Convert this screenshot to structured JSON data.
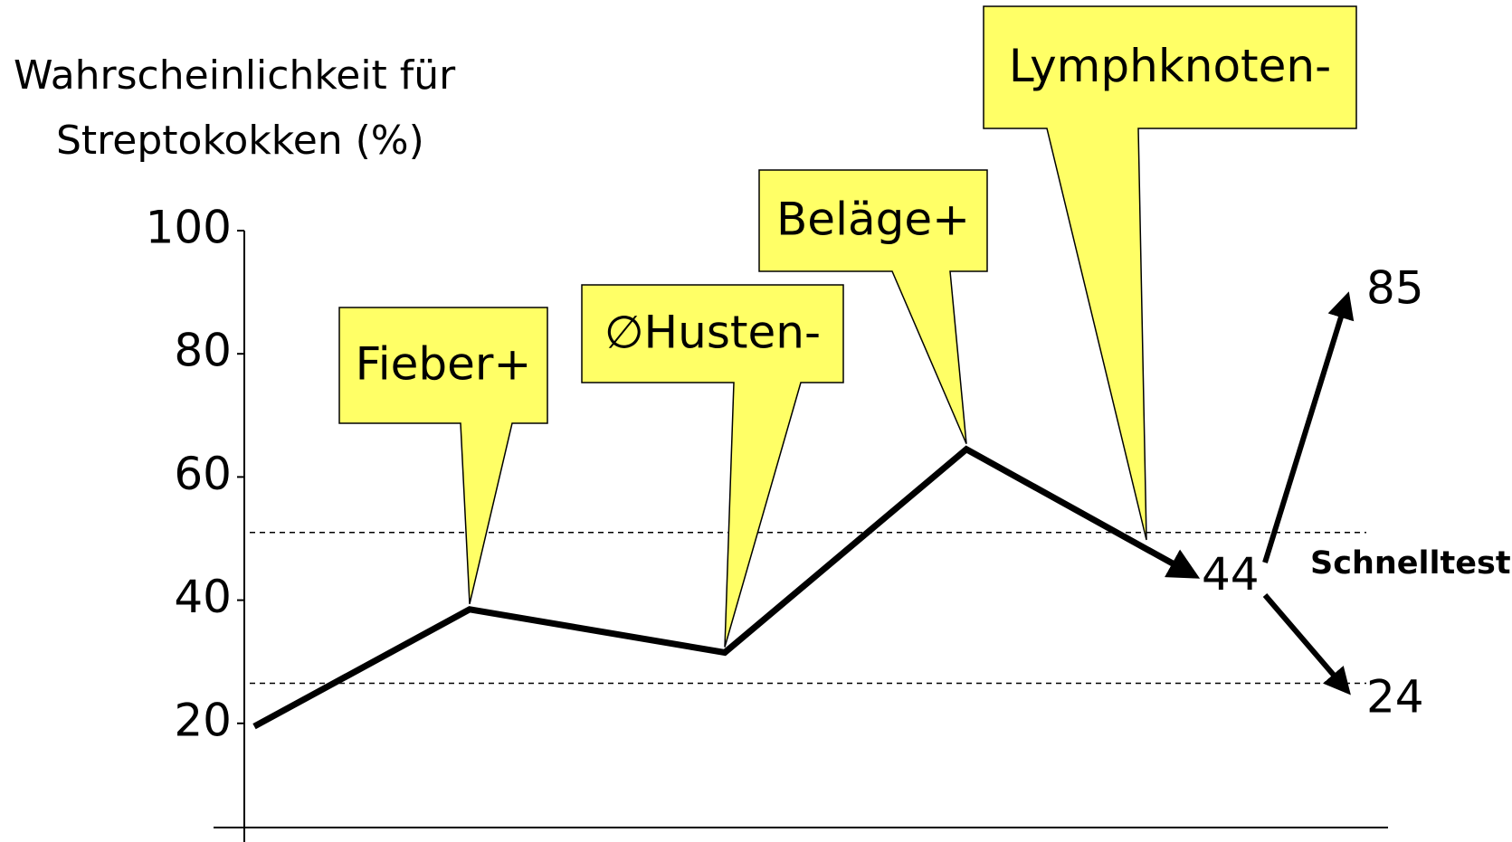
{
  "chart_data": {
    "type": "line",
    "y_label": [
      "Wahrscheinlichkeit für",
      "Streptokokken (%)"
    ],
    "ylim": [
      0,
      100
    ],
    "yticks": [
      20,
      40,
      60,
      80,
      100
    ],
    "categories": [
      null,
      "Fieber+",
      "∅Husten-",
      "Beläge+",
      "Lymphknoten-"
    ],
    "values": [
      19.5,
      38.5,
      31.5,
      64.5,
      44
    ],
    "color": "#000000",
    "callout_color": "#ffff66",
    "thresholds": [
      51,
      26.5
    ],
    "threshold_label": "Schnelltest",
    "branches": [
      85,
      24
    ]
  }
}
